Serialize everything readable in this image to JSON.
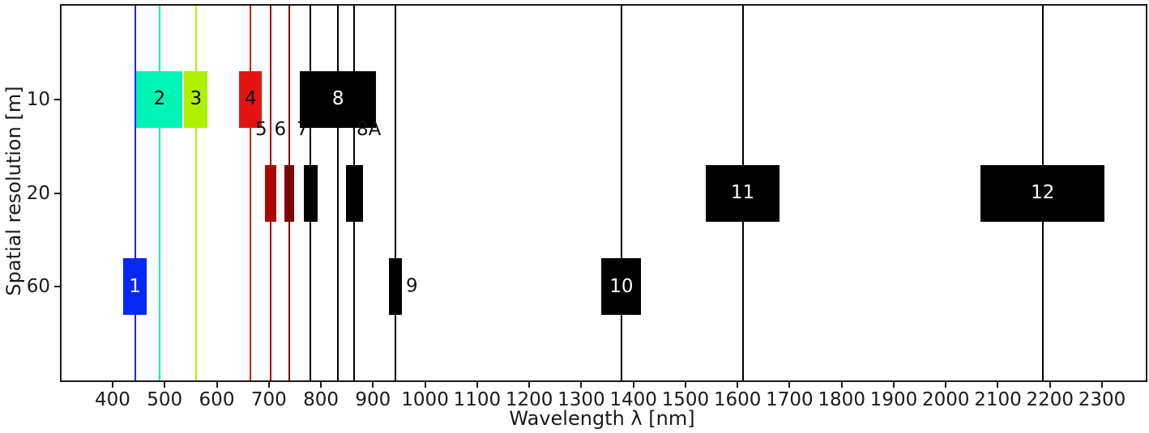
{
  "figure": {
    "background": "#ffffff",
    "spine_color": "#1a1a1a"
  },
  "chart_data": {
    "type": "bar",
    "orientation": "horizontal-spectral-bands",
    "title": "",
    "xlabel": "Wavelength λ [nm]",
    "ylabel": "Spatial resolution [m]",
    "xlim": [
      302,
      2384
    ],
    "x_ticks": [
      400,
      500,
      600,
      700,
      800,
      900,
      1000,
      1100,
      1200,
      1300,
      1400,
      1500,
      1600,
      1700,
      1800,
      1900,
      2000,
      2100,
      2200,
      2300
    ],
    "y_ticks": [
      "10",
      "20",
      "60"
    ],
    "y_resolutions_m": [
      10,
      20,
      60
    ],
    "grid": false,
    "legend": "none",
    "bands": [
      {
        "name": "1",
        "center_nm": 443,
        "bandwidth_nm": 45,
        "resolution_m": 60,
        "color": "#0828F5",
        "label_color": "#ffffff",
        "label_pos": "inside",
        "label_dx": 0
      },
      {
        "name": "2",
        "center_nm": 490,
        "bandwidth_nm": 89,
        "resolution_m": 10,
        "color": "#00F5B4",
        "label_color": "#000000",
        "label_pos": "inside",
        "label_dx": 0
      },
      {
        "name": "3",
        "center_nm": 560,
        "bandwidth_nm": 45,
        "resolution_m": 10,
        "color": "#AEF000",
        "label_color": "#000000",
        "label_pos": "inside",
        "label_dx": 0
      },
      {
        "name": "4",
        "center_nm": 665,
        "bandwidth_nm": 44,
        "resolution_m": 10,
        "color": "#E41414",
        "label_color": "#000000",
        "label_pos": "inside",
        "label_dx": 0
      },
      {
        "name": "5",
        "center_nm": 704,
        "bandwidth_nm": 22,
        "resolution_m": 20,
        "color": "#AD0505",
        "label_color": "#000000",
        "label_pos": "above",
        "label_dx": -12
      },
      {
        "name": "6",
        "center_nm": 739,
        "bandwidth_nm": 18,
        "resolution_m": 20,
        "color": "#7B0808",
        "label_color": "#000000",
        "label_pos": "above",
        "label_dx": -11
      },
      {
        "name": "7",
        "center_nm": 780,
        "bandwidth_nm": 26,
        "resolution_m": 20,
        "color": "#000000",
        "label_color": "#000000",
        "label_pos": "above",
        "label_dx": -10
      },
      {
        "name": "8",
        "center_nm": 833,
        "bandwidth_nm": 146,
        "resolution_m": 10,
        "color": "#000000",
        "label_color": "#ffffff",
        "label_pos": "inside",
        "label_dx": 0
      },
      {
        "name": "8A",
        "center_nm": 864,
        "bandwidth_nm": 33,
        "resolution_m": 20,
        "color": "#000000",
        "label_color": "#000000",
        "label_pos": "above",
        "label_dx": 18
      },
      {
        "name": "9",
        "center_nm": 943,
        "bandwidth_nm": 25,
        "resolution_m": 60,
        "color": "#000000",
        "label_color": "#000000",
        "label_pos": "right",
        "label_dx": 5
      },
      {
        "name": "10",
        "center_nm": 1377,
        "bandwidth_nm": 76,
        "resolution_m": 60,
        "color": "#000000",
        "label_color": "#ffffff",
        "label_pos": "inside",
        "label_dx": 0
      },
      {
        "name": "11",
        "center_nm": 1610,
        "bandwidth_nm": 141,
        "resolution_m": 20,
        "color": "#000000",
        "label_color": "#ffffff",
        "label_pos": "inside",
        "label_dx": 0
      },
      {
        "name": "12",
        "center_nm": 2186,
        "bandwidth_nm": 238,
        "resolution_m": 20,
        "color": "#000000",
        "label_color": "#ffffff",
        "label_pos": "inside",
        "label_dx": 0
      }
    ]
  }
}
